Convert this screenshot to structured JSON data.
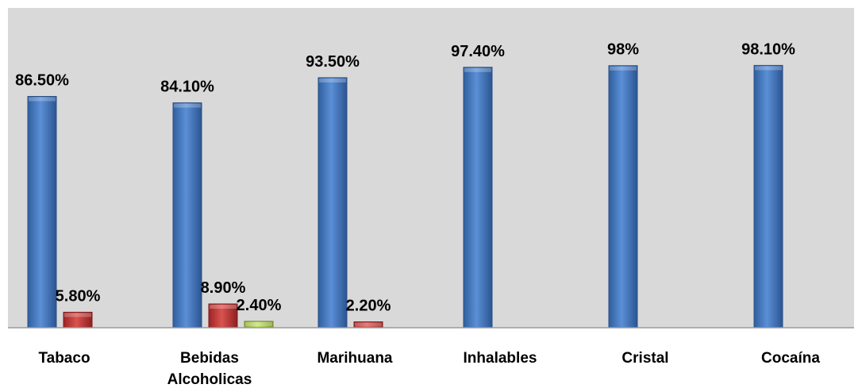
{
  "chart_data": {
    "type": "bar",
    "categories": [
      [
        "Tabaco"
      ],
      [
        "Bebidas",
        "Alcoholicas"
      ],
      [
        "Marihuana"
      ],
      [
        "Inhalables"
      ],
      [
        "Cristal"
      ],
      [
        "Cocaína"
      ]
    ],
    "series": [
      {
        "color": "#4a7ec6",
        "values": [
          86.5,
          84.1,
          93.5,
          97.4,
          98,
          98.1
        ],
        "labels": [
          "86.50%",
          "84.10%",
          "93.50%",
          "97.40%",
          "98%",
          "98.10%"
        ]
      },
      {
        "color": "#c0392b",
        "values": [
          5.8,
          8.9,
          2.2,
          null,
          null,
          null
        ],
        "labels": [
          "5.80%",
          "8.90%",
          "2.20%",
          null,
          null,
          null
        ]
      },
      {
        "color": "#a8c94a",
        "values": [
          null,
          2.4,
          null,
          null,
          null,
          null
        ],
        "labels": [
          null,
          "2.40%",
          null,
          null,
          null,
          null
        ]
      }
    ],
    "ylim": [
      0,
      100
    ],
    "grid": false,
    "legend": "none",
    "plot_background": "#d9d9d9"
  }
}
